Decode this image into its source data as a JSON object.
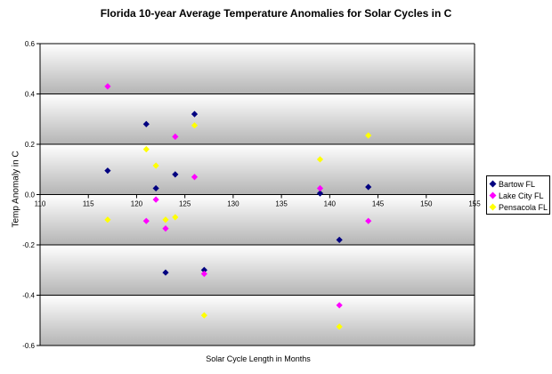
{
  "chart_data": {
    "type": "scatter",
    "title": "Florida 10-year Average Temperature Anomalies for Solar Cycles in C",
    "xlabel": "Solar Cycle Length in Months",
    "ylabel": "Temp Anomaly in C",
    "xlim": [
      110,
      155
    ],
    "ylim": [
      -0.6,
      0.6
    ],
    "x_ticks": [
      "110",
      "115",
      "120",
      "125",
      "130",
      "135",
      "140",
      "145",
      "150",
      "155"
    ],
    "y_ticks": [
      "0.6",
      "0.4",
      "0.2",
      "0.0",
      "-0.2",
      "-0.4",
      "-0.6"
    ],
    "grid": true,
    "legend_position": "right",
    "series": [
      {
        "name": "Bartow FL",
        "color": "#000080",
        "points": [
          {
            "x": 117,
            "y": 0.095
          },
          {
            "x": 121,
            "y": 0.28
          },
          {
            "x": 122,
            "y": 0.025
          },
          {
            "x": 123,
            "y": -0.31
          },
          {
            "x": 124,
            "y": 0.08
          },
          {
            "x": 126,
            "y": 0.32
          },
          {
            "x": 127,
            "y": -0.3
          },
          {
            "x": 139,
            "y": 0.005
          },
          {
            "x": 141,
            "y": -0.18
          },
          {
            "x": 144,
            "y": 0.03
          }
        ]
      },
      {
        "name": "Lake City FL",
        "color": "#FF00FF",
        "points": [
          {
            "x": 117,
            "y": 0.43
          },
          {
            "x": 121,
            "y": -0.105
          },
          {
            "x": 122,
            "y": -0.02
          },
          {
            "x": 123,
            "y": -0.135
          },
          {
            "x": 124,
            "y": 0.23
          },
          {
            "x": 126,
            "y": 0.07
          },
          {
            "x": 127,
            "y": -0.315
          },
          {
            "x": 139,
            "y": 0.025
          },
          {
            "x": 141,
            "y": -0.44
          },
          {
            "x": 144,
            "y": -0.105
          }
        ]
      },
      {
        "name": "Pensacola FL",
        "color": "#FFFF00",
        "points": [
          {
            "x": 117,
            "y": -0.1
          },
          {
            "x": 121,
            "y": 0.18
          },
          {
            "x": 122,
            "y": 0.115
          },
          {
            "x": 123,
            "y": -0.1
          },
          {
            "x": 124,
            "y": -0.09
          },
          {
            "x": 126,
            "y": 0.275
          },
          {
            "x": 127,
            "y": -0.48
          },
          {
            "x": 139,
            "y": 0.14
          },
          {
            "x": 141,
            "y": -0.525
          },
          {
            "x": 144,
            "y": 0.235
          }
        ]
      }
    ]
  }
}
